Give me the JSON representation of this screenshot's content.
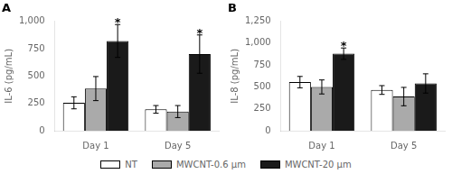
{
  "chart_data": [
    {
      "type": "bar",
      "title": "A",
      "ylabel": "IL-6 (pg/mL)",
      "categories": [
        "Day 1",
        "Day 5"
      ],
      "series": [
        {
          "name": "NT",
          "color": "#ffffff",
          "values": [
            255,
            195
          ],
          "errors": [
            55,
            35
          ]
        },
        {
          "name": "MWCNT-0.6 μm",
          "color": "#aaaaaa",
          "values": [
            385,
            175
          ],
          "errors": [
            110,
            55
          ]
        },
        {
          "name": "MWCNT-20 μm",
          "color": "#1a1a1a",
          "values": [
            820,
            700
          ],
          "errors": [
            150,
            175
          ]
        }
      ],
      "ylim": [
        0,
        1000
      ],
      "yticks": [
        0,
        250,
        500,
        750,
        {
          "value": 1000,
          "label": "1,000"
        }
      ],
      "grid": false,
      "legend": "bottom",
      "annotations": [
        {
          "text": "*",
          "category": "Day 1",
          "series": "MWCNT-20 μm"
        },
        {
          "text": "*",
          "category": "Day 5",
          "series": "MWCNT-20 μm"
        }
      ]
    },
    {
      "type": "bar",
      "title": "B",
      "ylabel": "IL-8 (pg/mL)",
      "categories": [
        "Day 1",
        "Day 5"
      ],
      "series": [
        {
          "name": "NT",
          "color": "#ffffff",
          "values": [
            555,
            465
          ],
          "errors": [
            65,
            50
          ]
        },
        {
          "name": "MWCNT-0.6 μm",
          "color": "#aaaaaa",
          "values": [
            500,
            390
          ],
          "errors": [
            80,
            105
          ]
        },
        {
          "name": "MWCNT-20 μm",
          "color": "#1a1a1a",
          "values": [
            880,
            540
          ],
          "errors": [
            65,
            110
          ]
        }
      ],
      "ylim": [
        0,
        1250
      ],
      "yticks": [
        0,
        250,
        500,
        750,
        {
          "value": 1000,
          "label": "1,000"
        },
        {
          "value": 1250,
          "label": "1,250"
        }
      ],
      "grid": false,
      "legend": "bottom",
      "annotations": [
        {
          "text": "*",
          "category": "Day 1",
          "series": "MWCNT-20 μm"
        }
      ]
    }
  ]
}
